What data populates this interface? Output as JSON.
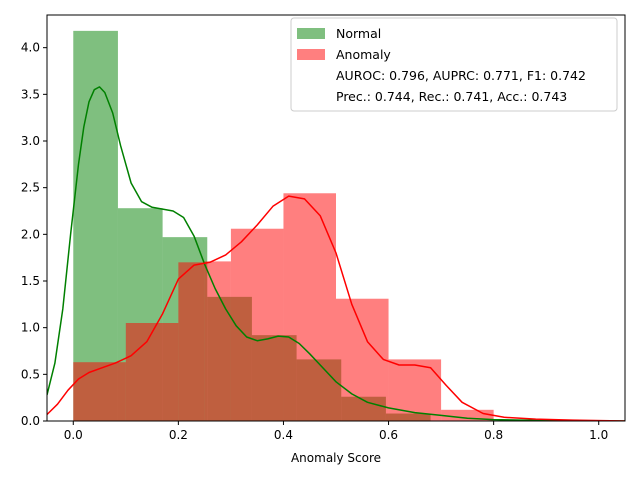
{
  "chart_data": {
    "type": "bar",
    "title": "",
    "xlabel": "Anomaly Score",
    "ylabel": "",
    "xlim": [
      -0.05,
      1.05
    ],
    "ylim": [
      0,
      4.35
    ],
    "xticks": [
      0.0,
      0.2,
      0.4,
      0.6,
      0.8,
      1.0
    ],
    "xtick_labels": [
      "0.0",
      "0.2",
      "0.4",
      "0.6",
      "0.8",
      "1.0"
    ],
    "yticks": [
      0.0,
      0.5,
      1.0,
      1.5,
      2.0,
      2.5,
      3.0,
      3.5,
      4.0
    ],
    "ytick_labels": [
      "0.0",
      "0.5",
      "1.0",
      "1.5",
      "2.0",
      "2.5",
      "3.0",
      "3.5",
      "4.0"
    ],
    "grid": false,
    "legend_position": "top-right",
    "series": [
      {
        "name": "Normal",
        "color": "#008000",
        "alpha": 0.5,
        "bins": [
          {
            "x0": 0.0,
            "x1": 0.085,
            "value": 4.18
          },
          {
            "x0": 0.085,
            "x1": 0.17,
            "value": 2.28
          },
          {
            "x0": 0.17,
            "x1": 0.255,
            "value": 1.97
          },
          {
            "x0": 0.255,
            "x1": 0.34,
            "value": 1.33
          },
          {
            "x0": 0.34,
            "x1": 0.425,
            "value": 0.92
          },
          {
            "x0": 0.425,
            "x1": 0.51,
            "value": 0.66
          },
          {
            "x0": 0.51,
            "x1": 0.595,
            "value": 0.26
          },
          {
            "x0": 0.595,
            "x1": 0.68,
            "value": 0.08
          }
        ],
        "kde": [
          [
            -0.05,
            0.28
          ],
          [
            -0.035,
            0.62
          ],
          [
            -0.02,
            1.2
          ],
          [
            -0.005,
            2.0
          ],
          [
            0.01,
            2.75
          ],
          [
            0.02,
            3.15
          ],
          [
            0.03,
            3.42
          ],
          [
            0.04,
            3.55
          ],
          [
            0.05,
            3.58
          ],
          [
            0.06,
            3.52
          ],
          [
            0.075,
            3.3
          ],
          [
            0.09,
            2.95
          ],
          [
            0.11,
            2.55
          ],
          [
            0.13,
            2.35
          ],
          [
            0.15,
            2.29
          ],
          [
            0.17,
            2.27
          ],
          [
            0.19,
            2.25
          ],
          [
            0.21,
            2.18
          ],
          [
            0.23,
            1.98
          ],
          [
            0.25,
            1.68
          ],
          [
            0.27,
            1.42
          ],
          [
            0.29,
            1.2
          ],
          [
            0.31,
            1.02
          ],
          [
            0.33,
            0.9
          ],
          [
            0.35,
            0.86
          ],
          [
            0.37,
            0.88
          ],
          [
            0.39,
            0.91
          ],
          [
            0.41,
            0.9
          ],
          [
            0.43,
            0.83
          ],
          [
            0.45,
            0.72
          ],
          [
            0.47,
            0.6
          ],
          [
            0.5,
            0.42
          ],
          [
            0.53,
            0.29
          ],
          [
            0.56,
            0.2
          ],
          [
            0.6,
            0.14
          ],
          [
            0.65,
            0.09
          ],
          [
            0.7,
            0.06
          ],
          [
            0.75,
            0.03
          ],
          [
            0.8,
            0.015
          ],
          [
            0.9,
            0.005
          ],
          [
            1.05,
            0.0
          ]
        ]
      },
      {
        "name": "Anomaly",
        "color": "#ff0000",
        "alpha": 0.5,
        "bins": [
          {
            "x0": 0.0,
            "x1": 0.1,
            "value": 0.63
          },
          {
            "x0": 0.1,
            "x1": 0.2,
            "value": 1.05
          },
          {
            "x0": 0.2,
            "x1": 0.25,
            "value": 1.7
          },
          {
            "x0": 0.25,
            "x1": 0.3,
            "value": 1.71
          },
          {
            "x0": 0.3,
            "x1": 0.4,
            "value": 2.06
          },
          {
            "x0": 0.4,
            "x1": 0.5,
            "value": 2.44
          },
          {
            "x0": 0.5,
            "x1": 0.6,
            "value": 1.31
          },
          {
            "x0": 0.6,
            "x1": 0.7,
            "value": 0.66
          },
          {
            "x0": 0.7,
            "x1": 0.8,
            "value": 0.12
          }
        ],
        "kde": [
          [
            -0.05,
            0.07
          ],
          [
            -0.03,
            0.18
          ],
          [
            -0.01,
            0.33
          ],
          [
            0.01,
            0.45
          ],
          [
            0.03,
            0.52
          ],
          [
            0.05,
            0.56
          ],
          [
            0.08,
            0.62
          ],
          [
            0.11,
            0.7
          ],
          [
            0.14,
            0.85
          ],
          [
            0.17,
            1.15
          ],
          [
            0.2,
            1.52
          ],
          [
            0.23,
            1.67
          ],
          [
            0.26,
            1.7
          ],
          [
            0.29,
            1.78
          ],
          [
            0.32,
            1.92
          ],
          [
            0.35,
            2.1
          ],
          [
            0.38,
            2.3
          ],
          [
            0.41,
            2.41
          ],
          [
            0.44,
            2.38
          ],
          [
            0.47,
            2.2
          ],
          [
            0.5,
            1.8
          ],
          [
            0.53,
            1.25
          ],
          [
            0.56,
            0.85
          ],
          [
            0.59,
            0.66
          ],
          [
            0.62,
            0.6
          ],
          [
            0.65,
            0.6
          ],
          [
            0.68,
            0.57
          ],
          [
            0.71,
            0.38
          ],
          [
            0.74,
            0.2
          ],
          [
            0.78,
            0.08
          ],
          [
            0.82,
            0.04
          ],
          [
            0.88,
            0.02
          ],
          [
            0.95,
            0.01
          ],
          [
            1.05,
            0.0
          ]
        ]
      }
    ],
    "annotations": [
      "AUROC: 0.796, AUPRC: 0.771, F1: 0.742",
      "Prec.: 0.744, Rec.: 0.741, Acc.: 0.743"
    ]
  }
}
